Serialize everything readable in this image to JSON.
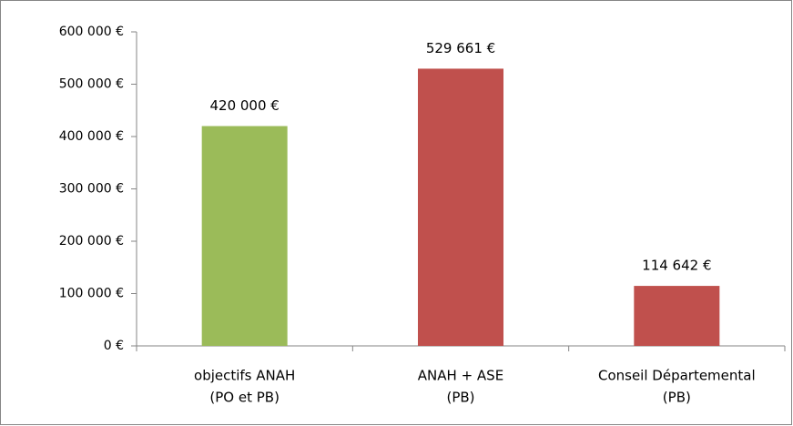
{
  "chart_data": {
    "type": "bar",
    "categories": [
      [
        "objectifs ANAH",
        "(PO et PB)"
      ],
      [
        "ANAH + ASE",
        "(PB)"
      ],
      [
        "Conseil Départemental",
        "(PB)"
      ]
    ],
    "values": [
      420000,
      529661,
      114642
    ],
    "value_labels": [
      "420 000 €",
      "529 661 €",
      "114 642 €"
    ],
    "colors": [
      "#9bbb59",
      "#c0504d",
      "#c0504d"
    ],
    "ylim": [
      0,
      600000
    ],
    "yticks": [
      {
        "value": 0,
        "label": "0 €"
      },
      {
        "value": 100000,
        "label": "100 000 €"
      },
      {
        "value": 200000,
        "label": "200 000 €"
      },
      {
        "value": 300000,
        "label": "300 000 €"
      },
      {
        "value": 400000,
        "label": "400 000 €"
      },
      {
        "value": 500000,
        "label": "500 000 €"
      },
      {
        "value": 600000,
        "label": "600 000 €"
      }
    ],
    "grid": false
  }
}
